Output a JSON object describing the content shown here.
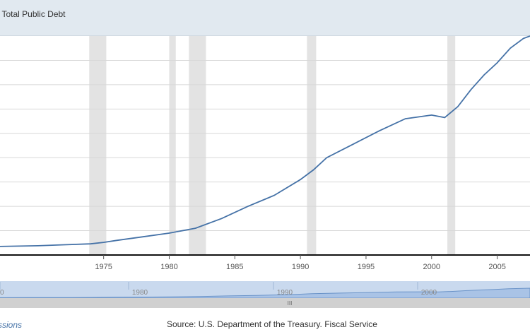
{
  "header": {
    "title": "bt: Total Public Debt"
  },
  "footer": {
    "left_link": "ssions",
    "source": "Source: U.S. Department of the Treasury. Fiscal Service"
  },
  "navigator": {
    "labels": [
      "0",
      "1980",
      "1990",
      "2000"
    ],
    "handle_glyph": "III"
  },
  "colors": {
    "line": "#4572a7",
    "recession": "#e3e3e3",
    "grid": "#d8d8d8",
    "title_bg": "#e1e9f0"
  },
  "chart_data": {
    "type": "line",
    "title": "bt: Total Public Debt",
    "xlim": [
      1967.1,
      2007.5
    ],
    "ylim": [
      0,
      9
    ],
    "x_ticks": [
      1975,
      1980,
      1985,
      1990,
      1995,
      2000,
      2005
    ],
    "y_gridlines": 9,
    "grid": true,
    "recessions": [
      [
        1973.9,
        1975.2
      ],
      [
        1980.0,
        1980.5
      ],
      [
        1981.5,
        1982.8
      ],
      [
        1990.5,
        1991.2
      ],
      [
        2001.2,
        2001.8
      ]
    ],
    "series": [
      {
        "x": [
          1967.1,
          1970,
          1972,
          1974,
          1975,
          1976,
          1978,
          1980,
          1982,
          1984,
          1986,
          1988,
          1990,
          1991,
          1992,
          1994,
          1996,
          1998,
          2000,
          2001,
          2002,
          2003,
          2004,
          2005,
          2006,
          2007,
          2007.5
        ],
        "y": [
          0.35,
          0.38,
          0.42,
          0.46,
          0.52,
          0.6,
          0.75,
          0.9,
          1.1,
          1.5,
          2.0,
          2.45,
          3.1,
          3.5,
          4.0,
          4.55,
          5.1,
          5.6,
          5.75,
          5.65,
          6.1,
          6.8,
          7.4,
          7.9,
          8.5,
          8.9,
          9.0
        ]
      }
    ]
  }
}
